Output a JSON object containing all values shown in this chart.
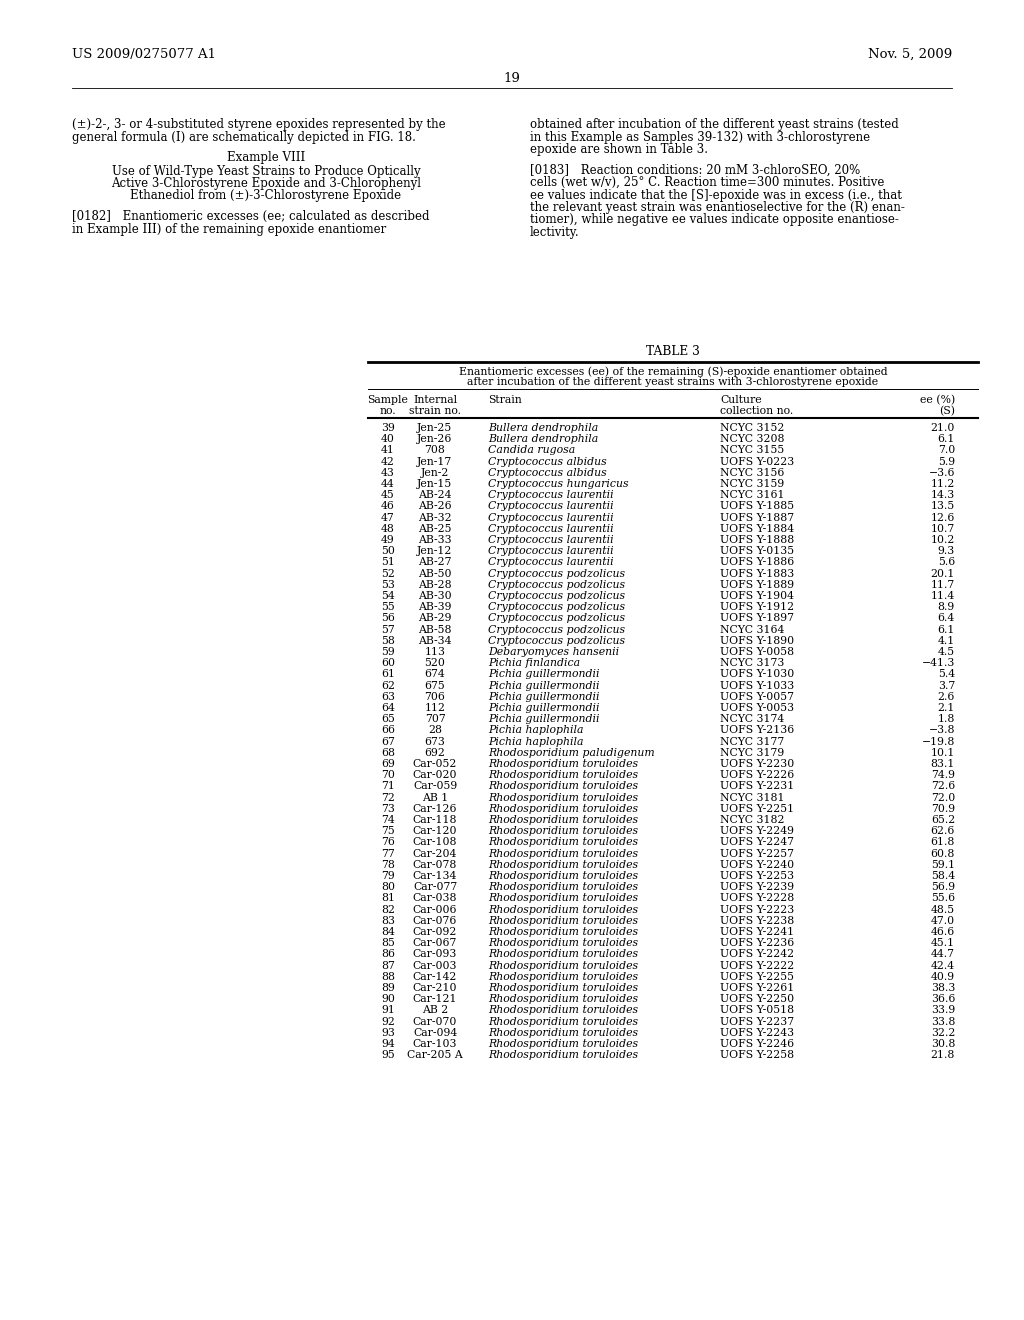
{
  "header_left": "US 2009/0275077 A1",
  "header_right": "Nov. 5, 2009",
  "page_number": "19",
  "table_title": "TABLE 3",
  "table_subtitle1": "Enantiomeric excesses (ee) of the remaining (S)-epoxide enantiomer obtained",
  "table_subtitle2": "after incubation of the different yeast strains with 3-chlorostyrene epoxide",
  "table_data": [
    [
      "39",
      "Jen-25",
      "Bullera dendrophila",
      "NCYC 3152",
      "21.0"
    ],
    [
      "40",
      "Jen-26",
      "Bullera dendrophila",
      "NCYC 3208",
      "6.1"
    ],
    [
      "41",
      "708",
      "Candida rugosa",
      "NCYC 3155",
      "7.0"
    ],
    [
      "42",
      "Jen-17",
      "Cryptococcus albidus",
      "UOFS Y-0223",
      "5.9"
    ],
    [
      "43",
      "Jen-2",
      "Cryptococcus albidus",
      "NCYC 3156",
      "−3.6"
    ],
    [
      "44",
      "Jen-15",
      "Cryptococcus hungaricus",
      "NCYC 3159",
      "11.2"
    ],
    [
      "45",
      "AB-24",
      "Cryptococcus laurentii",
      "NCYC 3161",
      "14.3"
    ],
    [
      "46",
      "AB-26",
      "Cryptococcus laurentii",
      "UOFS Y-1885",
      "13.5"
    ],
    [
      "47",
      "AB-32",
      "Cryptococcus laurentii",
      "UOFS Y-1887",
      "12.6"
    ],
    [
      "48",
      "AB-25",
      "Cryptococcus laurentii",
      "UOFS Y-1884",
      "10.7"
    ],
    [
      "49",
      "AB-33",
      "Cryptococcus laurentii",
      "UOFS Y-1888",
      "10.2"
    ],
    [
      "50",
      "Jen-12",
      "Cryptococcus laurentii",
      "UOFS Y-0135",
      "9.3"
    ],
    [
      "51",
      "AB-27",
      "Cryptococcus laurentii",
      "UOFS Y-1886",
      "5.6"
    ],
    [
      "52",
      "AB-50",
      "Cryptococcus podzolicus",
      "UOFS Y-1883",
      "20.1"
    ],
    [
      "53",
      "AB-28",
      "Cryptococcus podzolicus",
      "UOFS Y-1889",
      "11.7"
    ],
    [
      "54",
      "AB-30",
      "Cryptococcus podzolicus",
      "UOFS Y-1904",
      "11.4"
    ],
    [
      "55",
      "AB-39",
      "Cryptococcus podzolicus",
      "UOFS Y-1912",
      "8.9"
    ],
    [
      "56",
      "AB-29",
      "Cryptococcus podzolicus",
      "UOFS Y-1897",
      "6.4"
    ],
    [
      "57",
      "AB-58",
      "Cryptococcus podzolicus",
      "NCYC 3164",
      "6.1"
    ],
    [
      "58",
      "AB-34",
      "Cryptococcus podzolicus",
      "UOFS Y-1890",
      "4.1"
    ],
    [
      "59",
      "113",
      "Debaryomyces hansenii",
      "UOFS Y-0058",
      "4.5"
    ],
    [
      "60",
      "520",
      "Pichia finlandica",
      "NCYC 3173",
      "−41.3"
    ],
    [
      "61",
      "674",
      "Pichia guillermondii",
      "UOFS Y-1030",
      "5.4"
    ],
    [
      "62",
      "675",
      "Pichia guillermondii",
      "UOFS Y-1033",
      "3.7"
    ],
    [
      "63",
      "706",
      "Pichia guillermondii",
      "UOFS Y-0057",
      "2.6"
    ],
    [
      "64",
      "112",
      "Pichia guillermondii",
      "UOFS Y-0053",
      "2.1"
    ],
    [
      "65",
      "707",
      "Pichia guillermondii",
      "NCYC 3174",
      "1.8"
    ],
    [
      "66",
      "28",
      "Pichia haplophila",
      "UOFS Y-2136",
      "−3.8"
    ],
    [
      "67",
      "673",
      "Pichia haplophila",
      "NCYC 3177",
      "−19.8"
    ],
    [
      "68",
      "692",
      "Rhodosporidium paludigenum",
      "NCYC 3179",
      "10.1"
    ],
    [
      "69",
      "Car-052",
      "Rhodosporidium toruloides",
      "UOFS Y-2230",
      "83.1"
    ],
    [
      "70",
      "Car-020",
      "Rhodosporidium toruloides",
      "UOFS Y-2226",
      "74.9"
    ],
    [
      "71",
      "Car-059",
      "Rhodosporidium toruloides",
      "UOFS Y-2231",
      "72.6"
    ],
    [
      "72",
      "AB 1",
      "Rhodosporidium toruloides",
      "NCYC 3181",
      "72.0"
    ],
    [
      "73",
      "Car-126",
      "Rhodosporidium toruloides",
      "UOFS Y-2251",
      "70.9"
    ],
    [
      "74",
      "Car-118",
      "Rhodosporidium toruloides",
      "NCYC 3182",
      "65.2"
    ],
    [
      "75",
      "Car-120",
      "Rhodosporidium toruloides",
      "UOFS Y-2249",
      "62.6"
    ],
    [
      "76",
      "Car-108",
      "Rhodosporidium toruloides",
      "UOFS Y-2247",
      "61.8"
    ],
    [
      "77",
      "Car-204",
      "Rhodosporidium toruloides",
      "UOFS Y-2257",
      "60.8"
    ],
    [
      "78",
      "Car-078",
      "Rhodosporidium toruloides",
      "UOFS Y-2240",
      "59.1"
    ],
    [
      "79",
      "Car-134",
      "Rhodosporidium toruloides",
      "UOFS Y-2253",
      "58.4"
    ],
    [
      "80",
      "Car-077",
      "Rhodosporidium toruloides",
      "UOFS Y-2239",
      "56.9"
    ],
    [
      "81",
      "Car-038",
      "Rhodosporidium toruloides",
      "UOFS Y-2228",
      "55.6"
    ],
    [
      "82",
      "Car-006",
      "Rhodosporidium toruloides",
      "UOFS Y-2223",
      "48.5"
    ],
    [
      "83",
      "Car-076",
      "Rhodosporidium toruloides",
      "UOFS Y-2238",
      "47.0"
    ],
    [
      "84",
      "Car-092",
      "Rhodosporidium toruloides",
      "UOFS Y-2241",
      "46.6"
    ],
    [
      "85",
      "Car-067",
      "Rhodosporidium toruloides",
      "UOFS Y-2236",
      "45.1"
    ],
    [
      "86",
      "Car-093",
      "Rhodosporidium toruloides",
      "UOFS Y-2242",
      "44.7"
    ],
    [
      "87",
      "Car-003",
      "Rhodosporidium toruloides",
      "UOFS Y-2222",
      "42.4"
    ],
    [
      "88",
      "Car-142",
      "Rhodosporidium toruloides",
      "UOFS Y-2255",
      "40.9"
    ],
    [
      "89",
      "Car-210",
      "Rhodosporidium toruloides",
      "UOFS Y-2261",
      "38.3"
    ],
    [
      "90",
      "Car-121",
      "Rhodosporidium toruloides",
      "UOFS Y-2250",
      "36.6"
    ],
    [
      "91",
      "AB 2",
      "Rhodosporidium toruloides",
      "UOFS Y-0518",
      "33.9"
    ],
    [
      "92",
      "Car-070",
      "Rhodosporidium toruloides",
      "UOFS Y-2237",
      "33.8"
    ],
    [
      "93",
      "Car-094",
      "Rhodosporidium toruloides",
      "UOFS Y-2243",
      "32.2"
    ],
    [
      "94",
      "Car-103",
      "Rhodosporidium toruloides",
      "UOFS Y-2246",
      "30.8"
    ],
    [
      "95",
      "Car-205 A",
      "Rhodosporidium toruloides",
      "UOFS Y-2258",
      "21.8"
    ]
  ],
  "bg_color": "#ffffff",
  "text_color": "#000000"
}
